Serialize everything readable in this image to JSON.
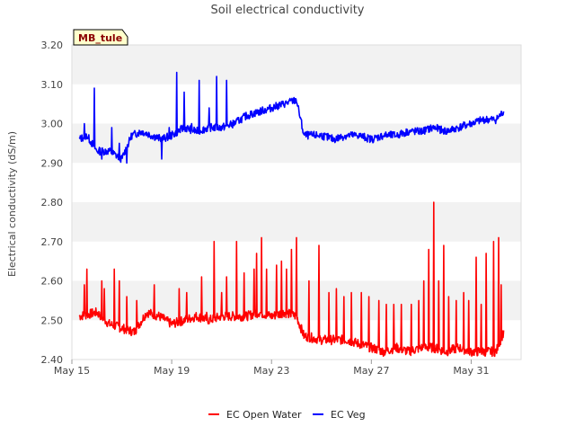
{
  "chart_data": {
    "type": "line",
    "title": "Soil electrical conductivity",
    "xlabel": "",
    "ylabel": "Electrical conductivity (dS/m)",
    "site_badge": "MB_tule",
    "x_tick_labels": [
      "May 15",
      "May 19",
      "May 23",
      "May 27",
      "May 31"
    ],
    "x_tick_days": [
      15,
      19,
      23,
      27,
      31
    ],
    "xlim": [
      15,
      33
    ],
    "ylim": [
      2.4,
      3.2
    ],
    "y_ticks": [
      2.4,
      2.5,
      2.6,
      2.7,
      2.8,
      2.9,
      3.0,
      3.1,
      3.2
    ],
    "y_tick_labels": [
      "2.40",
      "2.50",
      "2.60",
      "2.70",
      "2.80",
      "2.90",
      "3.00",
      "3.10",
      "3.20"
    ],
    "grid": "horizontal bands",
    "legend_position": "bottom-center",
    "series": [
      {
        "name": "EC Open Water",
        "color": "#ff0000",
        "base": [
          [
            15.3,
            2.51
          ],
          [
            16.0,
            2.52
          ],
          [
            16.5,
            2.49
          ],
          [
            17.0,
            2.48
          ],
          [
            17.5,
            2.47
          ],
          [
            18.0,
            2.52
          ],
          [
            18.5,
            2.51
          ],
          [
            19.0,
            2.49
          ],
          [
            19.5,
            2.5
          ],
          [
            20.0,
            2.51
          ],
          [
            20.5,
            2.5
          ],
          [
            21.0,
            2.51
          ],
          [
            21.5,
            2.51
          ],
          [
            22.0,
            2.51
          ],
          [
            22.5,
            2.52
          ],
          [
            23.0,
            2.51
          ],
          [
            23.5,
            2.52
          ],
          [
            24.0,
            2.51
          ],
          [
            24.3,
            2.46
          ],
          [
            25.0,
            2.45
          ],
          [
            25.5,
            2.45
          ],
          [
            26.0,
            2.45
          ],
          [
            26.5,
            2.44
          ],
          [
            27.0,
            2.43
          ],
          [
            27.5,
            2.42
          ],
          [
            28.0,
            2.43
          ],
          [
            28.5,
            2.42
          ],
          [
            29.0,
            2.43
          ],
          [
            29.5,
            2.43
          ],
          [
            30.0,
            2.42
          ],
          [
            30.5,
            2.43
          ],
          [
            31.0,
            2.42
          ],
          [
            31.5,
            2.42
          ],
          [
            32.0,
            2.42
          ],
          [
            32.3,
            2.47
          ]
        ],
        "spikes": [
          [
            15.5,
            2.59
          ],
          [
            15.6,
            2.63
          ],
          [
            16.2,
            2.6
          ],
          [
            16.3,
            2.58
          ],
          [
            16.7,
            2.63
          ],
          [
            16.9,
            2.6
          ],
          [
            17.2,
            2.56
          ],
          [
            17.6,
            2.55
          ],
          [
            18.3,
            2.59
          ],
          [
            19.3,
            2.58
          ],
          [
            19.6,
            2.57
          ],
          [
            20.2,
            2.61
          ],
          [
            20.4,
            2.52
          ],
          [
            20.7,
            2.7
          ],
          [
            21.0,
            2.57
          ],
          [
            21.2,
            2.61
          ],
          [
            21.6,
            2.7
          ],
          [
            21.9,
            2.62
          ],
          [
            22.3,
            2.63
          ],
          [
            22.4,
            2.67
          ],
          [
            22.6,
            2.71
          ],
          [
            22.8,
            2.63
          ],
          [
            23.2,
            2.64
          ],
          [
            23.4,
            2.65
          ],
          [
            23.6,
            2.63
          ],
          [
            23.8,
            2.68
          ],
          [
            24.0,
            2.71
          ],
          [
            24.5,
            2.6
          ],
          [
            24.9,
            2.69
          ],
          [
            25.3,
            2.57
          ],
          [
            25.6,
            2.58
          ],
          [
            25.9,
            2.56
          ],
          [
            26.2,
            2.57
          ],
          [
            26.6,
            2.57
          ],
          [
            26.9,
            2.56
          ],
          [
            27.3,
            2.55
          ],
          [
            27.6,
            2.54
          ],
          [
            27.9,
            2.54
          ],
          [
            28.2,
            2.54
          ],
          [
            28.6,
            2.54
          ],
          [
            28.9,
            2.55
          ],
          [
            29.1,
            2.6
          ],
          [
            29.3,
            2.68
          ],
          [
            29.5,
            2.8
          ],
          [
            29.7,
            2.6
          ],
          [
            29.9,
            2.69
          ],
          [
            30.1,
            2.56
          ],
          [
            30.4,
            2.55
          ],
          [
            30.7,
            2.57
          ],
          [
            30.9,
            2.55
          ],
          [
            31.2,
            2.66
          ],
          [
            31.4,
            2.54
          ],
          [
            31.6,
            2.67
          ],
          [
            31.9,
            2.7
          ],
          [
            32.1,
            2.71
          ],
          [
            32.2,
            2.59
          ]
        ]
      },
      {
        "name": "EC Veg",
        "color": "#0000ff",
        "base": [
          [
            15.3,
            2.96
          ],
          [
            15.6,
            2.97
          ],
          [
            16.0,
            2.93
          ],
          [
            16.5,
            2.93
          ],
          [
            17.0,
            2.91
          ],
          [
            17.4,
            2.97
          ],
          [
            17.8,
            2.98
          ],
          [
            18.2,
            2.97
          ],
          [
            18.6,
            2.96
          ],
          [
            19.0,
            2.97
          ],
          [
            19.5,
            2.99
          ],
          [
            20.0,
            2.98
          ],
          [
            20.5,
            2.99
          ],
          [
            21.0,
            2.99
          ],
          [
            21.5,
            3.0
          ],
          [
            22.0,
            3.02
          ],
          [
            22.5,
            3.03
          ],
          [
            23.0,
            3.04
          ],
          [
            23.5,
            3.05
          ],
          [
            24.0,
            3.06
          ],
          [
            24.3,
            2.97
          ],
          [
            25.0,
            2.97
          ],
          [
            25.5,
            2.96
          ],
          [
            26.0,
            2.97
          ],
          [
            26.5,
            2.97
          ],
          [
            27.0,
            2.96
          ],
          [
            27.5,
            2.97
          ],
          [
            28.0,
            2.97
          ],
          [
            28.5,
            2.98
          ],
          [
            29.0,
            2.98
          ],
          [
            29.5,
            2.99
          ],
          [
            30.0,
            2.98
          ],
          [
            30.5,
            2.99
          ],
          [
            31.0,
            3.0
          ],
          [
            31.5,
            3.01
          ],
          [
            32.0,
            3.01
          ],
          [
            32.3,
            3.03
          ]
        ],
        "spikes": [
          [
            15.5,
            3.0
          ],
          [
            15.9,
            3.09
          ],
          [
            16.2,
            2.91
          ],
          [
            16.6,
            2.99
          ],
          [
            16.9,
            2.95
          ],
          [
            17.2,
            2.9
          ],
          [
            18.6,
            2.91
          ],
          [
            18.9,
            2.99
          ],
          [
            19.2,
            3.13
          ],
          [
            19.5,
            3.08
          ],
          [
            19.8,
            3.0
          ],
          [
            20.1,
            3.11
          ],
          [
            20.5,
            3.04
          ],
          [
            20.8,
            3.12
          ],
          [
            21.2,
            3.11
          ]
        ]
      }
    ]
  }
}
